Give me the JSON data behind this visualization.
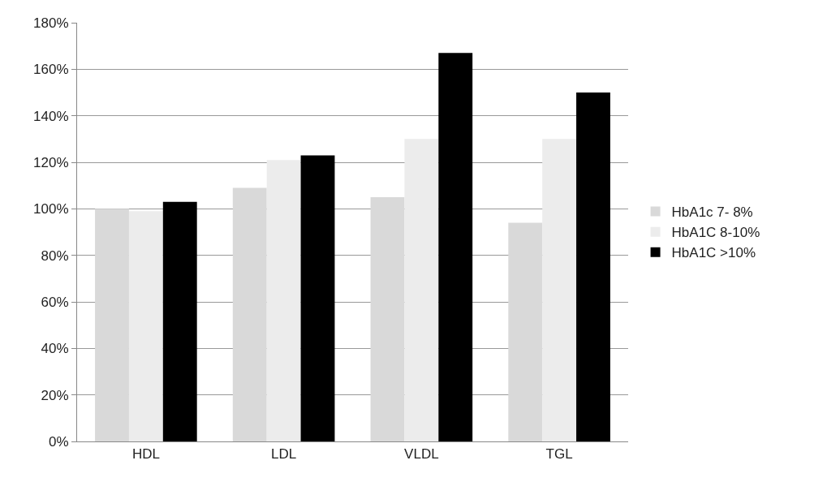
{
  "chart_data": {
    "type": "bar",
    "categories": [
      "HDL",
      "LDL",
      "VLDL",
      "TGL"
    ],
    "series": [
      {
        "name": "HbA1c 7- 8%",
        "color": "#d9d9d9",
        "values": [
          100,
          109,
          105,
          94
        ]
      },
      {
        "name": "HbA1C 8-10%",
        "color": "#ececec",
        "values": [
          99,
          121,
          130,
          130
        ]
      },
      {
        "name": "HbA1C >10%",
        "color": "#000000",
        "values": [
          103,
          123,
          167,
          150
        ]
      }
    ],
    "ylim": [
      0,
      180
    ],
    "yticks": [
      {
        "value": 0,
        "label": "0%"
      },
      {
        "value": 20,
        "label": "20%"
      },
      {
        "value": 40,
        "label": "40%"
      },
      {
        "value": 60,
        "label": "60%"
      },
      {
        "value": 80,
        "label": "80%"
      },
      {
        "value": 100,
        "label": "100%"
      },
      {
        "value": 120,
        "label": "120%"
      },
      {
        "value": 140,
        "label": "140%"
      },
      {
        "value": 160,
        "label": "160%"
      },
      {
        "value": 180,
        "label": "180%"
      }
    ],
    "grid": "y",
    "legend": "right"
  }
}
